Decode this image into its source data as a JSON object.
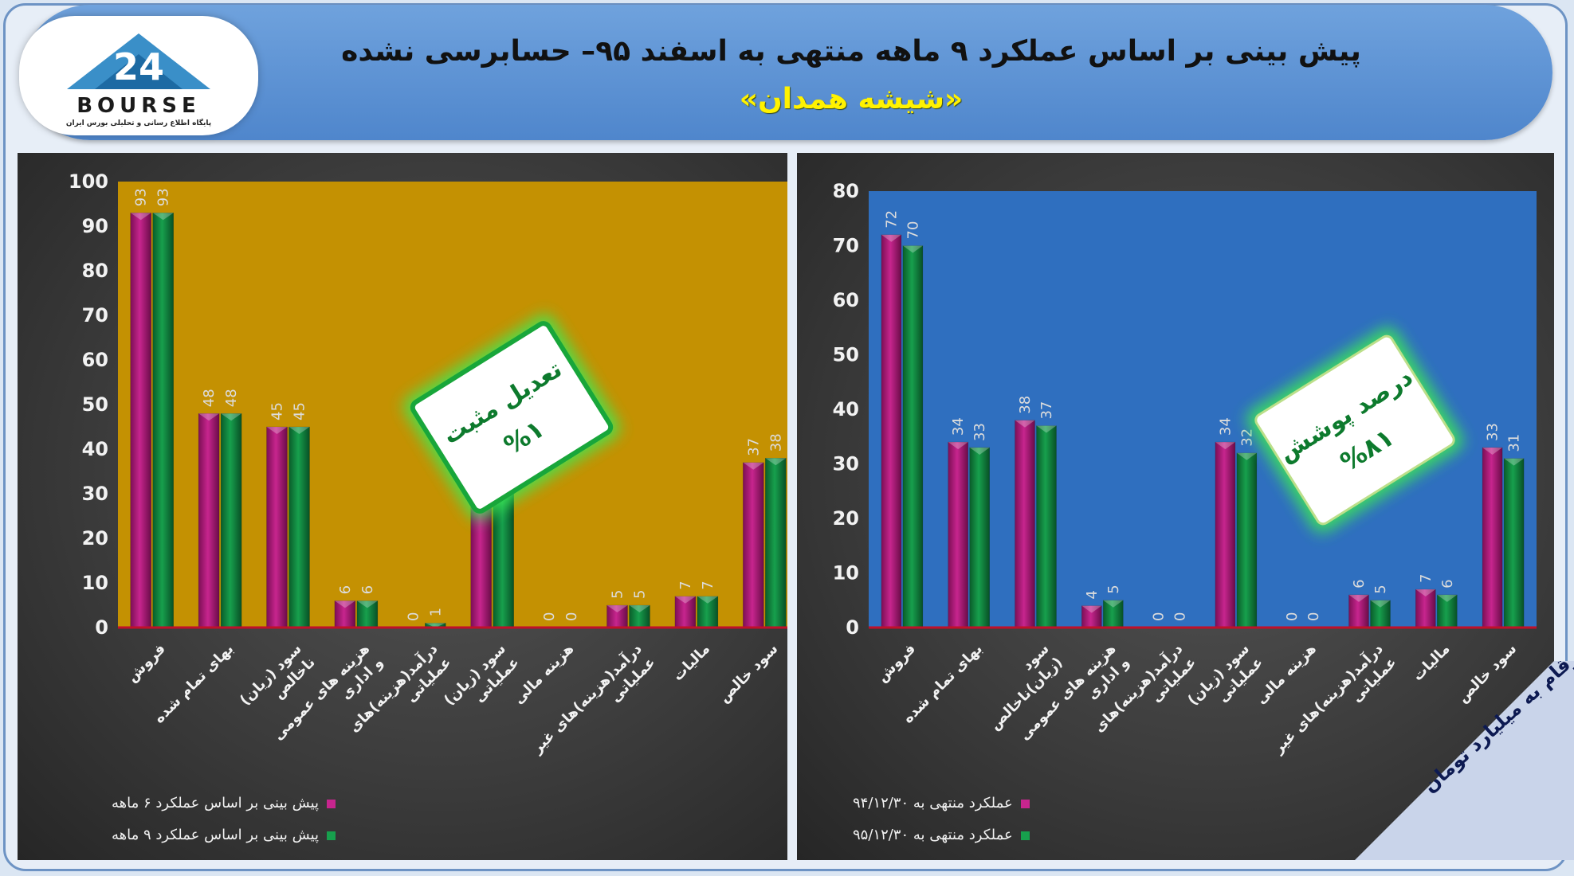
{
  "header": {
    "title": "پیش بینی بر اساس عملکرد ۹ ماهه منتهی به اسفند ۹۵– حسابرسی نشده",
    "subtitle": "«شیشه همدان»"
  },
  "logo": {
    "word": "BOURSE",
    "number": "24",
    "tagline": "پایگاه اطلاع رسانی و تحلیلی بورس ایران"
  },
  "left_callout": {
    "line1": "تعدیل مثبت",
    "line2": "%۱"
  },
  "right_callout": {
    "line1": "درصد پوشش",
    "line2": "%۸۱"
  },
  "note": "ارقام به میلیارد تومان",
  "colors": {
    "series_a": "#c7258e",
    "series_b": "#17a04d",
    "left_plot_bg": "#c49102",
    "right_plot_bg": "#2f6fbf",
    "baseline": "#c0102a"
  },
  "chart_data": [
    {
      "type": "bar",
      "categories": [
        "فروش",
        "بهای تمام شده",
        "سود (زیان) ناخالص",
        "هزینه های عمومی و اداری",
        "درآمد(هزینه)های عملیاتی",
        "سود (زیان) عملیاتی",
        "هزینه مالی",
        "درآمد(هزینه)های غیر عملیاتی",
        "مالیات",
        "سود خالص"
      ],
      "series": [
        {
          "name": "پیش بینی بر اساس عملکرد ۶ ماهه",
          "values": [
            93,
            48,
            45,
            6,
            0,
            39,
            0,
            5,
            7,
            37
          ]
        },
        {
          "name": "پیش بینی بر اساس عملکرد ۹ ماهه",
          "values": [
            93,
            48,
            45,
            6,
            1,
            40,
            0,
            5,
            7,
            38
          ]
        }
      ],
      "ylim": [
        0,
        100
      ],
      "yticks": [
        0,
        10,
        20,
        30,
        40,
        50,
        60,
        70,
        80,
        90,
        100
      ],
      "legend": "bottom-left"
    },
    {
      "type": "bar",
      "categories": [
        "فروش",
        "بهای تمام شده",
        "سود (زیان)ناخالص",
        "هزینه های عمومی و اداری",
        "درآمد(هزینه)های عملیاتی",
        "سود (زیان) عملیاتی",
        "هزینه مالی",
        "درآمد(هزینه)های غیر عملیاتی",
        "مالیات",
        "سود خالص"
      ],
      "series": [
        {
          "name": "عملکرد منتهی به ۹۴/۱۲/۳۰",
          "values": [
            72,
            34,
            38,
            4,
            0,
            34,
            0,
            6,
            7,
            33
          ]
        },
        {
          "name": "عملکرد منتهی به ۹۵/۱۲/۳۰",
          "values": [
            70,
            33,
            37,
            5,
            0,
            32,
            0,
            5,
            6,
            31
          ]
        }
      ],
      "ylim": [
        0,
        80
      ],
      "yticks": [
        0,
        10,
        20,
        30,
        40,
        50,
        60,
        70,
        80
      ],
      "legend": "bottom-left"
    }
  ]
}
